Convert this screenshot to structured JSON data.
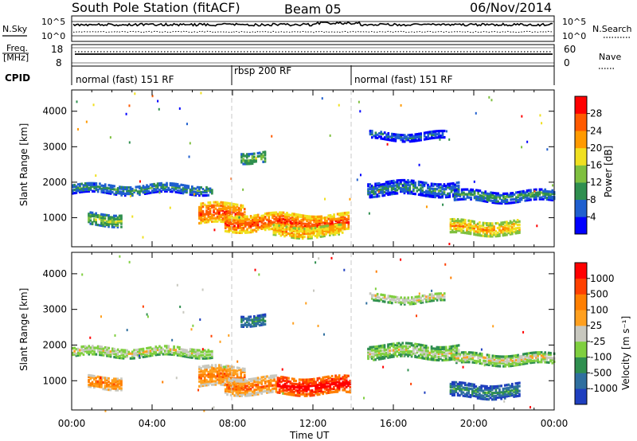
{
  "header": {
    "station": "South Pole Station (fitACF)",
    "beam": "Beam 05",
    "date": "06/Nov/2014"
  },
  "top_panels": {
    "nsky": {
      "left_label": "N.Sky",
      "right_label": "N.Search",
      "left_ticks": [
        "10^5",
        "10^0"
      ],
      "right_ticks": [
        "10^5",
        "10^0"
      ]
    },
    "freq": {
      "left_label_line1": "Freq.",
      "left_label_line2": "[MHz]",
      "left_ticks": [
        "18",
        "8"
      ],
      "right_label": "Nave",
      "right_ticks": [
        "60",
        "0"
      ]
    },
    "cpid": {
      "label": "CPID",
      "segments": [
        {
          "label": "normal (fast) 151 RF",
          "start_hour": 0,
          "end_hour": 8
        },
        {
          "label": "rbsp 200 RF",
          "start_hour": 8,
          "end_hour": 14
        },
        {
          "label": "normal (fast) 151 RF",
          "start_hour": 14,
          "end_hour": 24
        }
      ]
    }
  },
  "colors": {
    "power": [
      "#0000ff",
      "#1f5fcf",
      "#2f8f4f",
      "#7fc03f",
      "#f0e020",
      "#ff9a00",
      "#ff5a00",
      "#ff0000"
    ],
    "velocity": [
      "#1f3fbf",
      "#2f6f9f",
      "#2f8f4f",
      "#7fcf3f",
      "#c8c8bf",
      "#ffa01f",
      "#ff7f00",
      "#ff4000",
      "#ff0000"
    ]
  },
  "chart_data": [
    {
      "type": "heatmap",
      "name": "power",
      "ylabel": "Slant Range [km]",
      "colorbar_label": "Power [dB]",
      "colorbar_ticks": [
        4,
        8,
        12,
        16,
        20,
        24,
        28
      ],
      "ylim": [
        180,
        4600
      ],
      "yticks": [
        1000,
        2000,
        3000,
        4000
      ],
      "xlim_hours": [
        0,
        24
      ],
      "echo_bands": [
        {
          "start_hour": 0.0,
          "end_hour": 7.0,
          "center_km": 1850,
          "half_width_km": 130,
          "level": 2
        },
        {
          "start_hour": 0.8,
          "end_hour": 2.5,
          "center_km": 1000,
          "half_width_km": 170,
          "level": 3
        },
        {
          "start_hour": 6.3,
          "end_hour": 8.6,
          "center_km": 1150,
          "half_width_km": 280,
          "level": 6
        },
        {
          "start_hour": 7.6,
          "end_hour": 13.8,
          "center_km": 900,
          "half_width_km": 230,
          "level": 6
        },
        {
          "start_hour": 10.0,
          "end_hour": 13.5,
          "center_km": 650,
          "half_width_km": 140,
          "level": 5
        },
        {
          "start_hour": 14.7,
          "end_hour": 19.2,
          "center_km": 1850,
          "half_width_km": 180,
          "level": 2
        },
        {
          "start_hour": 19.0,
          "end_hour": 24.0,
          "center_km": 1650,
          "half_width_km": 150,
          "level": 2
        },
        {
          "start_hour": 18.8,
          "end_hour": 22.3,
          "center_km": 750,
          "half_width_km": 180,
          "level": 5
        },
        {
          "start_hour": 14.8,
          "end_hour": 18.5,
          "center_km": 3350,
          "half_width_km": 110,
          "level": 1
        },
        {
          "start_hour": 8.4,
          "end_hour": 9.6,
          "center_km": 2750,
          "half_width_km": 140,
          "level": 3
        }
      ]
    },
    {
      "type": "heatmap",
      "name": "velocity",
      "ylabel": "Slant Range [km]",
      "xlabel": "Time UT",
      "colorbar_label": "Velocity [m s⁻¹]",
      "colorbar_ticks": [
        1000,
        500,
        100,
        25,
        -25,
        -100,
        -500,
        -1000
      ],
      "ylim": [
        180,
        4600
      ],
      "yticks": [
        1000,
        2000,
        3000,
        4000
      ],
      "xlim_hours": [
        0,
        24
      ],
      "xticks": [
        "00:00",
        "04:00",
        "08:00",
        "12:00",
        "16:00",
        "20:00",
        "00:00"
      ],
      "echo_bands": [
        {
          "start_hour": 0.0,
          "end_hour": 7.0,
          "center_km": 1850,
          "half_width_km": 130,
          "level": 4
        },
        {
          "start_hour": 0.8,
          "end_hour": 2.5,
          "center_km": 1000,
          "half_width_km": 170,
          "level": 6
        },
        {
          "start_hour": 6.3,
          "end_hour": 8.6,
          "center_km": 1150,
          "half_width_km": 280,
          "level": 6
        },
        {
          "start_hour": 7.6,
          "end_hour": 10.2,
          "center_km": 900,
          "half_width_km": 230,
          "level": 6
        },
        {
          "start_hour": 10.2,
          "end_hour": 13.8,
          "center_km": 900,
          "half_width_km": 230,
          "level": 8
        },
        {
          "start_hour": 14.7,
          "end_hour": 19.2,
          "center_km": 1850,
          "half_width_km": 180,
          "level": 4
        },
        {
          "start_hour": 19.0,
          "end_hour": 24.0,
          "center_km": 1650,
          "half_width_km": 150,
          "level": 4
        },
        {
          "start_hour": 18.8,
          "end_hour": 22.3,
          "center_km": 750,
          "half_width_km": 180,
          "level": 2
        },
        {
          "start_hour": 14.8,
          "end_hour": 18.5,
          "center_km": 3350,
          "half_width_km": 110,
          "level": 4
        },
        {
          "start_hour": 8.4,
          "end_hour": 9.6,
          "center_km": 2750,
          "half_width_km": 140,
          "level": 2
        }
      ]
    }
  ]
}
